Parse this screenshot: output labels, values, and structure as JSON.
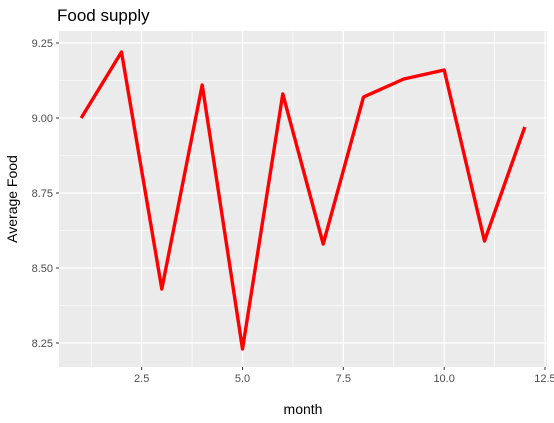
{
  "chart_data": {
    "type": "line",
    "title": "Food supply",
    "xlabel": "month",
    "ylabel": "Average Food",
    "x": [
      1,
      2,
      3,
      4,
      5,
      6,
      7,
      8,
      9,
      10,
      11,
      12
    ],
    "series": [
      {
        "values": [
          9.0,
          9.22,
          8.43,
          9.11,
          8.23,
          9.08,
          8.58,
          9.07,
          9.13,
          9.16,
          8.59,
          8.97
        ],
        "color": "#ff0000"
      }
    ],
    "xlim": [
      0.45,
      12.55
    ],
    "ylim": [
      8.17,
      9.29
    ],
    "xticks": [
      2.5,
      5.0,
      7.5,
      10.0,
      12.5
    ],
    "xtick_labels": [
      "2.5",
      "5.0",
      "7.5",
      "10.0",
      "12.5"
    ],
    "yticks": [
      8.25,
      8.5,
      8.75,
      9.0,
      9.25
    ],
    "ytick_labels": [
      "8.25",
      "8.50",
      "8.75",
      "9.00",
      "9.25"
    ],
    "grid": true,
    "panel_color": "#ebebeb",
    "grid_color": "#ffffff"
  }
}
